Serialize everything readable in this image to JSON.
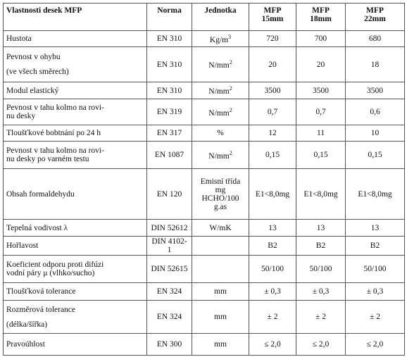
{
  "table": {
    "header": {
      "property": [
        "Vlastnosti desek MFP"
      ],
      "norm": [
        "Norma"
      ],
      "unit": [
        "Jednotka"
      ],
      "products": [
        [
          "MFP",
          "15mm"
        ],
        [
          "MFP",
          "18mm"
        ],
        [
          "MFP",
          "22mm"
        ]
      ]
    },
    "rows": [
      {
        "property": [
          "Hustota"
        ],
        "norm": "EN 310",
        "unit": {
          "lines": [
            "Kg/m"
          ],
          "sup": "3"
        },
        "values": [
          "720",
          "700",
          "680"
        ]
      },
      {
        "property": [
          "Pevnost v ohybu",
          "(ve všech směrech)"
        ],
        "norm": "EN 310",
        "unit": {
          "lines": [
            "N/mm"
          ],
          "sup": "2"
        },
        "values": [
          "20",
          "20",
          "18"
        ]
      },
      {
        "property": [
          "Modul elastický"
        ],
        "norm": "EN 310",
        "unit": {
          "lines": [
            "N/mm"
          ],
          "sup": "2"
        },
        "values": [
          "3500",
          "3500",
          "3500"
        ]
      },
      {
        "property": [
          "Pevnost v tahu kolmo na rovi-",
          "nu desky"
        ],
        "norm": "EN 319",
        "unit": {
          "lines": [
            "N/mm"
          ],
          "sup": "2"
        },
        "values": [
          "0,7",
          "0,7",
          "0,6"
        ]
      },
      {
        "property": [
          "Tloušťkové bobtnání po 24 h"
        ],
        "norm": "EN 317",
        "unit": {
          "lines": [
            "%"
          ]
        },
        "values": [
          "12",
          "11",
          "10"
        ]
      },
      {
        "property": [
          "Pevnost v tahu kolmo na rovi-",
          "nu desky po varném testu"
        ],
        "norm": "EN 1087",
        "unit": {
          "lines": [
            "N/mm"
          ],
          "sup": "2"
        },
        "values": [
          "0,15",
          "0,15",
          "0,15"
        ]
      },
      {
        "property": [
          "Obsah formaldehydu"
        ],
        "norm": "EN 120",
        "unit": {
          "lines": [
            "Emisní třída",
            "mg",
            "HCHO/100",
            "g.as"
          ]
        },
        "values": [
          "E1<8,0mg",
          "E1<8,0mg",
          "E1<8,0mg"
        ]
      },
      {
        "property": [
          "Tepelná vodivost λ"
        ],
        "norm": "DIN 52612",
        "unit": {
          "lines": [
            "W/mK"
          ]
        },
        "values": [
          "13",
          "13",
          "13"
        ]
      },
      {
        "property": [
          "Hořlavost"
        ],
        "norm": "DIN 4102-1",
        "values": [
          "B2",
          "B2",
          "B2"
        ]
      },
      {
        "property": [
          "Koeficient odporu proti difúzi",
          "vodní páry μ (vlhko/sucho)"
        ],
        "norm": "DIN 52615",
        "values": [
          "50/100",
          "50/100",
          "50/100"
        ]
      },
      {
        "property": [
          "Tloušťková tolerance"
        ],
        "norm": "EN 324",
        "unit": {
          "lines": [
            "mm"
          ]
        },
        "values": [
          "± 0,3",
          "± 0,3",
          "± 0,3"
        ]
      },
      {
        "property": [
          "Rozměrová tolerance",
          "(délka/šířka)"
        ],
        "norm": "EN 324",
        "unit": {
          "lines": [
            "mm"
          ]
        },
        "values": [
          "± 2",
          "± 2",
          "± 2"
        ]
      },
      {
        "property": [
          "Pravoúhlost"
        ],
        "norm": "EN 300",
        "unit": {
          "lines": [
            "mm"
          ]
        },
        "values": [
          "≤ 2,0",
          "≤ 2,0",
          "≤ 2,0"
        ]
      }
    ]
  }
}
